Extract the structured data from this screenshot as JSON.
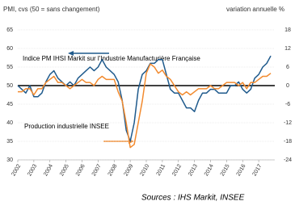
{
  "chart_data": {
    "type": "line",
    "y_label": "PMI, cvs (50 = sans changement)",
    "y2_label": "variation annuelle  %",
    "source": "Sources : IHS Markit, INSEE",
    "annotations": [
      "Indice PM IHSI Markit sur l'Industrie Manufacturière Française",
      "Production industrielle  INSEE"
    ],
    "x": [
      2002,
      2002.25,
      2002.5,
      2002.75,
      2003,
      2003.25,
      2003.5,
      2003.75,
      2004,
      2004.25,
      2004.5,
      2004.75,
      2005,
      2005.25,
      2005.5,
      2005.75,
      2006,
      2006.25,
      2006.5,
      2006.75,
      2007,
      2007.25,
      2007.5,
      2007.75,
      2008,
      2008.25,
      2008.5,
      2008.75,
      2009,
      2009.25,
      2009.5,
      2009.75,
      2010,
      2010.25,
      2010.5,
      2010.75,
      2011,
      2011.25,
      2011.5,
      2011.75,
      2012,
      2012.25,
      2012.5,
      2012.75,
      2013,
      2013.25,
      2013.5,
      2013.75,
      2014,
      2014.25,
      2014.5,
      2014.75,
      2015,
      2015.25,
      2015.5,
      2015.75,
      2016,
      2016.25,
      2016.5,
      2016.75,
      2017,
      2017.25,
      2017.5,
      2017.75
    ],
    "series": [
      {
        "name": "Indice PM IHSI Markit sur l'Industrie Manufacturière Française",
        "color": "#1f5a8c",
        "axis": "y",
        "values": [
          50,
          49,
          48,
          50,
          47,
          47,
          48,
          51,
          53,
          54,
          52,
          51,
          50,
          51,
          50,
          52,
          53,
          54,
          55,
          54,
          55,
          57,
          55,
          54,
          53,
          51,
          46,
          38,
          35,
          40,
          49,
          53,
          54,
          56,
          56,
          57,
          57,
          53,
          49,
          48,
          48,
          46,
          44,
          44,
          43,
          46,
          48,
          48,
          49,
          49,
          48,
          48,
          48,
          50,
          50,
          51,
          49,
          48,
          49,
          52,
          53,
          55,
          56,
          58
        ]
      },
      {
        "name": "Production industrielle  INSEE",
        "color": "#f28a2e",
        "axis": "y2",
        "values": [
          -2,
          -2,
          -1,
          -1,
          -3,
          -1,
          -1,
          1,
          2,
          3,
          1,
          1,
          0,
          -1,
          0,
          1,
          2,
          1,
          1,
          0,
          2,
          3,
          2,
          2,
          2,
          -2,
          -5,
          -12,
          -20,
          -19,
          -12,
          -5,
          4,
          7,
          6,
          4,
          5,
          3,
          2,
          0,
          -2,
          -3,
          -2,
          -3,
          -2,
          -1,
          -1,
          -1,
          0,
          -1,
          -1,
          0,
          1,
          1,
          1,
          0,
          1,
          -1,
          1,
          1,
          2,
          3,
          3,
          4
        ]
      }
    ],
    "xlim": [
      2002,
      2018
    ],
    "xticks": [
      2002,
      2003,
      2004,
      2005,
      2006,
      2007,
      2008,
      2009,
      2010,
      2011,
      2012,
      2013,
      2014,
      2015,
      2016,
      2017
    ],
    "ylim": [
      30,
      65
    ],
    "yticks": [
      30,
      35,
      40,
      45,
      50,
      55,
      60,
      65
    ],
    "y2lim": [
      -24,
      18
    ],
    "y2ticks": [
      -24,
      -18,
      -12,
      -6,
      0,
      6,
      12,
      18
    ],
    "reference_line": 50,
    "grid": true
  }
}
